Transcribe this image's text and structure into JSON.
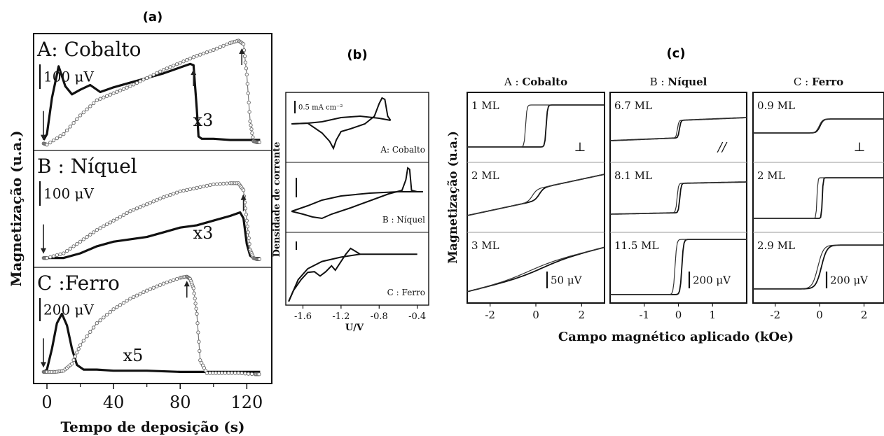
{
  "panel_labels": {
    "a": "(a)",
    "b": "(b)",
    "c": "(c)"
  },
  "chart_data": [
    {
      "panel": "(a)",
      "type": "line",
      "ylabel": "Magnetização (u.a.)",
      "xlabel": "Tempo de deposição (s)",
      "xticks": [
        "0",
        "40",
        "80",
        "120"
      ],
      "xlim": [
        -8,
        135
      ],
      "subplots": [
        {
          "title": "A: Cobalto",
          "scale_bar": "100 μV",
          "multiplier": "x3",
          "series": [
            {
              "style": "solid-thick",
              "x": [
                -2,
                0,
                3,
                7,
                11,
                15,
                20,
                26,
                32,
                40,
                50,
                60,
                70,
                80,
                86,
                88,
                90,
                91,
                93,
                100,
                110,
                120,
                128
              ],
              "y": [
                0.09,
                0.14,
                0.45,
                0.72,
                0.55,
                0.48,
                0.52,
                0.56,
                0.5,
                0.54,
                0.58,
                0.62,
                0.66,
                0.71,
                0.74,
                0.73,
                0.35,
                0.12,
                0.1,
                0.1,
                0.09,
                0.09,
                0.09
              ]
            },
            {
              "style": "circles",
              "x": [
                -2,
                0,
                10,
                20,
                30,
                40,
                50,
                60,
                70,
                80,
                90,
                100,
                110,
                115,
                118,
                120,
                122,
                124,
                126,
                128
              ],
              "y": [
                0.06,
                0.05,
                0.14,
                0.3,
                0.43,
                0.49,
                0.55,
                0.62,
                0.69,
                0.75,
                0.81,
                0.86,
                0.92,
                0.94,
                0.91,
                0.65,
                0.25,
                0.08,
                0.07,
                0.07
              ]
            }
          ],
          "arrows_x": [
            0,
            88,
            117
          ]
        },
        {
          "title": "B : Níquel",
          "scale_bar": "100 μV",
          "multiplier": "x3",
          "series": [
            {
              "style": "solid-thick",
              "x": [
                -2,
                0,
                10,
                20,
                30,
                40,
                50,
                60,
                70,
                80,
                90,
                100,
                110,
                116,
                118,
                120,
                122,
                124,
                128
              ],
              "y": [
                0.08,
                0.08,
                0.08,
                0.12,
                0.18,
                0.22,
                0.24,
                0.26,
                0.3,
                0.34,
                0.36,
                0.4,
                0.44,
                0.47,
                0.42,
                0.2,
                0.1,
                0.08,
                0.08
              ]
            },
            {
              "style": "circles",
              "x": [
                -2,
                0,
                10,
                20,
                30,
                40,
                50,
                60,
                70,
                80,
                90,
                100,
                110,
                115,
                118,
                120,
                122,
                124,
                126,
                128
              ],
              "y": [
                0.08,
                0.08,
                0.12,
                0.22,
                0.32,
                0.4,
                0.48,
                0.54,
                0.6,
                0.65,
                0.68,
                0.71,
                0.72,
                0.72,
                0.66,
                0.4,
                0.15,
                0.08,
                0.07,
                0.07
              ]
            }
          ],
          "arrows_x": [
            0,
            118
          ]
        },
        {
          "title": "C :Ferro",
          "scale_bar": "200 μV",
          "multiplier": "x5",
          "series": [
            {
              "style": "solid-thick",
              "x": [
                -2,
                0,
                3,
                6,
                9,
                12,
                15,
                18,
                22,
                30,
                40,
                60,
                80,
                100,
                120,
                128
              ],
              "y": [
                0.1,
                0.12,
                0.3,
                0.52,
                0.6,
                0.5,
                0.3,
                0.16,
                0.12,
                0.12,
                0.11,
                0.11,
                0.1,
                0.1,
                0.1,
                0.1
              ]
            },
            {
              "style": "circles",
              "x": [
                -2,
                0,
                5,
                10,
                15,
                20,
                30,
                40,
                50,
                60,
                70,
                80,
                84,
                86,
                88,
                90,
                92,
                96,
                105,
                115,
                125,
                128
              ],
              "y": [
                0.1,
                0.1,
                0.1,
                0.11,
                0.17,
                0.33,
                0.52,
                0.64,
                0.73,
                0.8,
                0.86,
                0.91,
                0.92,
                0.9,
                0.82,
                0.6,
                0.2,
                0.09,
                0.09,
                0.09,
                0.08,
                0.08
              ]
            }
          ],
          "arrows_x": [
            0,
            84
          ]
        }
      ]
    },
    {
      "panel": "(b)",
      "type": "line",
      "ylabel": "Densidade de corrente",
      "xlabel": "U/V",
      "xticks": [
        "-1.6",
        "-1.2",
        "-0.8",
        "-0.4"
      ],
      "xlim": [
        -1.78,
        -0.28
      ],
      "scale_bar": "0.5 mA cm⁻²",
      "subplots": [
        {
          "title": "A: Cobalto",
          "forward": {
            "x": [
              -1.72,
              -1.55,
              -1.4,
              -1.32,
              -1.28,
              -1.25,
              -1.2,
              -1.1,
              -0.95,
              -0.85,
              -0.8,
              -0.77,
              -0.74,
              -0.71,
              -0.68
            ],
            "y": [
              0.55,
              0.56,
              0.42,
              0.3,
              0.2,
              0.32,
              0.44,
              0.48,
              0.55,
              0.66,
              0.84,
              0.92,
              0.9,
              0.66,
              0.6
            ]
          },
          "reverse": {
            "x": [
              -0.68,
              -0.8,
              -1.0,
              -1.2,
              -1.4,
              -1.55,
              -1.72
            ],
            "y": [
              0.6,
              0.63,
              0.66,
              0.64,
              0.58,
              0.56,
              0.55
            ]
          }
        },
        {
          "title": "B : Níquel",
          "forward": {
            "x": [
              -1.72,
              -1.6,
              -1.5,
              -1.4,
              -1.3,
              -1.1,
              -0.9,
              -0.7,
              -0.56,
              -0.52,
              -0.5,
              -0.48,
              -0.46,
              -0.4,
              -0.34
            ],
            "y": [
              0.3,
              0.26,
              0.22,
              0.2,
              0.26,
              0.35,
              0.45,
              0.55,
              0.6,
              0.75,
              0.92,
              0.9,
              0.6,
              0.58,
              0.58
            ]
          },
          "reverse": {
            "x": [
              -0.34,
              -0.6,
              -0.9,
              -1.2,
              -1.4,
              -1.55,
              -1.72
            ],
            "y": [
              0.58,
              0.58,
              0.56,
              0.52,
              0.46,
              0.38,
              0.3
            ]
          }
        },
        {
          "title": "C : Ferro",
          "forward": {
            "x": [
              -1.75,
              -1.7,
              -1.62,
              -1.55,
              -1.48,
              -1.42,
              -1.36,
              -1.3,
              -1.26,
              -1.2,
              -1.15,
              -1.1,
              -1.05,
              -1.0,
              -0.8,
              -0.6,
              -0.4
            ],
            "y": [
              0.05,
              0.2,
              0.35,
              0.45,
              0.46,
              0.4,
              0.46,
              0.54,
              0.48,
              0.6,
              0.7,
              0.78,
              0.74,
              0.7,
              0.7,
              0.7,
              0.7
            ]
          },
          "reverse": {
            "x": [
              -1.0,
              -1.2,
              -1.4,
              -1.55,
              -1.65,
              -1.75
            ],
            "y": [
              0.7,
              0.66,
              0.6,
              0.5,
              0.35,
              0.05
            ]
          }
        }
      ]
    },
    {
      "panel": "(c)",
      "type": "line",
      "ylabel": "Magnetização (u.a.)",
      "xlabel": "Campo magnético aplicado (kOe)",
      "columns": [
        {
          "title_prefix": "A :",
          "title_name": "Cobalto",
          "xlim": [
            -3,
            3
          ],
          "xticks": [
            "-2",
            "0",
            "2"
          ],
          "orientation": "⊥",
          "scale_bar": "50 μV",
          "rows": [
            {
              "label": "1 ML",
              "loop": "square",
              "hc": 0.45,
              "sw": 0.06,
              "lo": 0.22,
              "hi": 0.82,
              "slope": 0
            },
            {
              "label": "2 ML",
              "loop": "soft",
              "hc": 0.15,
              "sw": 0.2,
              "lo": 0.45,
              "hi": 0.62,
              "slope": 0.07
            },
            {
              "label": "3 ML",
              "loop": "open",
              "hc": 0.3,
              "sw": 1.2,
              "lo": 0.4,
              "hi": 0.55,
              "slope": 0.08
            }
          ]
        },
        {
          "title_prefix": "B :",
          "title_name": "Níquel",
          "xlim": [
            -2,
            2
          ],
          "xticks": [
            "-1",
            "0",
            "1"
          ],
          "orientation": "//",
          "scale_bar": "200 μV",
          "rows": [
            {
              "label": "6.7 ML",
              "loop": "step",
              "hc": 0.03,
              "sw": 0.04,
              "lo": 0.35,
              "hi": 0.6,
              "slope": 0.02
            },
            {
              "label": "8.1 ML",
              "loop": "step",
              "hc": 0.04,
              "sw": 0.04,
              "lo": 0.28,
              "hi": 0.7,
              "slope": 0.01
            },
            {
              "label": "11.5 ML",
              "loop": "square",
              "hc": 0.1,
              "sw": 0.05,
              "lo": 0.12,
              "hi": 0.9,
              "slope": 0
            }
          ]
        },
        {
          "title_prefix": "C :",
          "title_name": "Ferro",
          "xlim": [
            -3,
            2.9
          ],
          "xticks": [
            "-2",
            "0",
            "2"
          ],
          "orientation": "⊥",
          "scale_bar": "200 μV",
          "rows": [
            {
              "label": "0.9 ML",
              "loop": "step",
              "hc": 0.02,
              "sw": 0.15,
              "lo": 0.42,
              "hi": 0.62,
              "slope": 0
            },
            {
              "label": "2 ML",
              "loop": "square",
              "hc": 0.12,
              "sw": 0.04,
              "lo": 0.2,
              "hi": 0.78,
              "slope": 0
            },
            {
              "label": "2.9 ML",
              "loop": "soft",
              "hc": 0.08,
              "sw": 0.25,
              "lo": 0.2,
              "hi": 0.82,
              "slope": 0
            }
          ]
        }
      ]
    }
  ]
}
